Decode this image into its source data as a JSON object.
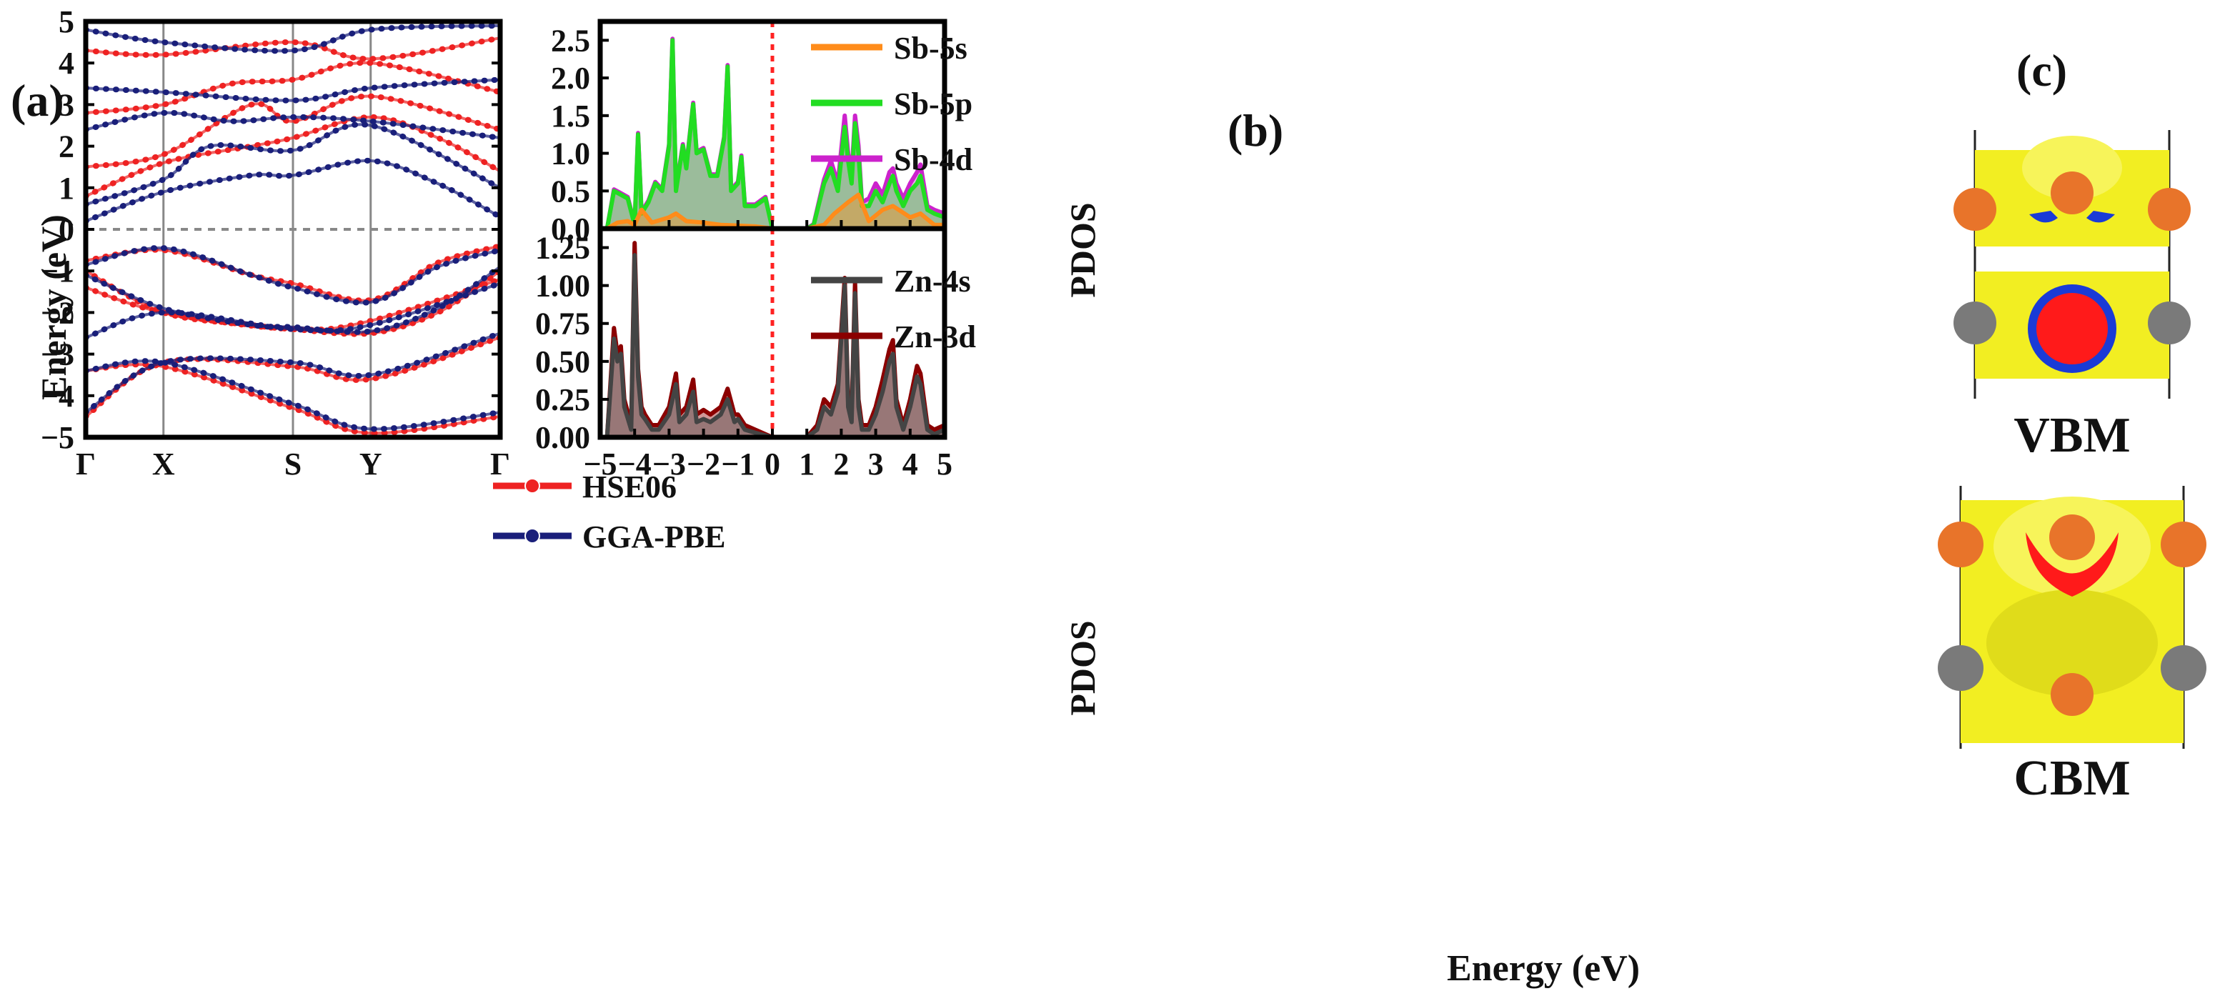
{
  "chart_data": [
    {
      "panel_label": "(a)",
      "type": "line",
      "ylabel": "Energy (eV)",
      "ylim": [
        -5,
        5
      ],
      "yticks": [
        "5",
        "4",
        "3",
        "2",
        "1",
        "0",
        "−1",
        "−2",
        "−3",
        "−4",
        "−5"
      ],
      "kpath": [
        "Γ",
        "X",
        "S",
        "Y",
        "Γ"
      ],
      "kpath_pos": [
        0,
        0.1875,
        0.5,
        0.6875,
        1
      ],
      "fermi_level": 0,
      "legend": [
        {
          "name": "HSE06",
          "color": "#ee2222"
        },
        {
          "name": "GGA-PBE",
          "color": "#1a1f7a"
        }
      ],
      "series": [
        {
          "name": "HSE06",
          "color": "#ee2222",
          "bands": [
            [
              [
                0,
                -0.75
              ],
              [
                0.1875,
                -0.5
              ],
              [
                0.4,
                -1.1
              ],
              [
                0.5,
                -1.3
              ],
              [
                0.6875,
                -1.7
              ],
              [
                0.85,
                -0.8
              ],
              [
                1,
                -0.4
              ]
            ],
            [
              [
                0,
                -1.0
              ],
              [
                0.1875,
                -2.0
              ],
              [
                0.4,
                -2.3
              ],
              [
                0.5,
                -2.4
              ],
              [
                0.6875,
                -2.5
              ],
              [
                0.85,
                -2.0
              ],
              [
                1,
                -1.0
              ]
            ],
            [
              [
                0,
                -1.4
              ],
              [
                0.1875,
                -2.0
              ],
              [
                0.5,
                -2.4
              ],
              [
                0.6875,
                -2.2
              ],
              [
                1,
                -1.2
              ]
            ],
            [
              [
                0,
                -3.4
              ],
              [
                0.1875,
                -3.3
              ],
              [
                0.5,
                -4.3
              ],
              [
                0.6875,
                -4.9
              ],
              [
                1,
                -4.5
              ]
            ],
            [
              [
                0,
                -4.5
              ],
              [
                0.1875,
                -3.2
              ],
              [
                0.5,
                -3.3
              ],
              [
                0.6875,
                -3.6
              ],
              [
                1,
                -2.6
              ]
            ],
            [
              [
                0,
                0.8
              ],
              [
                0.1875,
                1.6
              ],
              [
                0.4,
                2.0
              ],
              [
                0.5,
                2.2
              ],
              [
                0.6875,
                2.7
              ],
              [
                0.85,
                2.2
              ],
              [
                1,
                1.4
              ]
            ],
            [
              [
                0,
                1.5
              ],
              [
                0.1875,
                1.8
              ],
              [
                0.4,
                3.0
              ],
              [
                0.5,
                2.6
              ],
              [
                0.6875,
                3.2
              ],
              [
                1,
                2.4
              ]
            ],
            [
              [
                0,
                2.8
              ],
              [
                0.1875,
                3.0
              ],
              [
                0.35,
                3.5
              ],
              [
                0.5,
                3.6
              ],
              [
                0.6875,
                4.0
              ],
              [
                1,
                3.3
              ]
            ],
            [
              [
                0,
                4.3
              ],
              [
                0.1875,
                4.2
              ],
              [
                0.5,
                4.5
              ],
              [
                0.6875,
                4.1
              ],
              [
                1,
                4.6
              ]
            ]
          ]
        },
        {
          "name": "GGA-PBE",
          "color": "#1a1f7a",
          "bands": [
            [
              [
                0,
                -0.85
              ],
              [
                0.1875,
                -0.45
              ],
              [
                0.4,
                -1.1
              ],
              [
                0.5,
                -1.4
              ],
              [
                0.6875,
                -1.75
              ],
              [
                0.85,
                -0.9
              ],
              [
                1,
                -0.5
              ]
            ],
            [
              [
                0,
                -1.1
              ],
              [
                0.1875,
                -1.9
              ],
              [
                0.4,
                -2.3
              ],
              [
                0.5,
                -2.35
              ],
              [
                0.6875,
                -2.45
              ],
              [
                0.85,
                -1.9
              ],
              [
                1,
                -0.9
              ]
            ],
            [
              [
                0,
                -2.6
              ],
              [
                0.1875,
                -2.0
              ],
              [
                0.5,
                -2.4
              ],
              [
                0.6875,
                -2.3
              ],
              [
                1,
                -1.3
              ]
            ],
            [
              [
                0,
                -3.4
              ],
              [
                0.1875,
                -3.2
              ],
              [
                0.5,
                -4.2
              ],
              [
                0.6875,
                -4.8
              ],
              [
                1,
                -4.4
              ]
            ],
            [
              [
                0,
                -4.4
              ],
              [
                0.1875,
                -3.2
              ],
              [
                0.5,
                -3.2
              ],
              [
                0.6875,
                -3.5
              ],
              [
                1,
                -2.5
              ]
            ],
            [
              [
                0,
                0.2
              ],
              [
                0.1875,
                0.9
              ],
              [
                0.4,
                1.3
              ],
              [
                0.5,
                1.3
              ],
              [
                0.6875,
                1.65
              ],
              [
                0.85,
                1.1
              ],
              [
                1,
                0.3
              ]
            ],
            [
              [
                0,
                0.6
              ],
              [
                0.1875,
                1.2
              ],
              [
                0.3,
                2.0
              ],
              [
                0.5,
                1.9
              ],
              [
                0.6875,
                2.5
              ],
              [
                1,
                1.0
              ]
            ],
            [
              [
                0,
                2.4
              ],
              [
                0.1875,
                2.8
              ],
              [
                0.35,
                2.6
              ],
              [
                0.5,
                2.7
              ],
              [
                0.6875,
                2.6
              ],
              [
                1,
                2.2
              ]
            ],
            [
              [
                0,
                3.4
              ],
              [
                0.1875,
                3.3
              ],
              [
                0.5,
                3.1
              ],
              [
                0.6875,
                3.4
              ],
              [
                1,
                3.6
              ]
            ],
            [
              [
                0,
                4.8
              ],
              [
                0.1875,
                4.5
              ],
              [
                0.5,
                4.3
              ],
              [
                0.6875,
                4.8
              ],
              [
                1,
                4.9
              ]
            ]
          ]
        }
      ]
    },
    {
      "panel_label": "(b)",
      "type": "area",
      "ylabel": "PDOS",
      "ylim": [
        0,
        2.75
      ],
      "yticks": [
        "0.0",
        "0.5",
        "1.0",
        "1.5",
        "2.0",
        "2.5"
      ],
      "xlim": [
        -5,
        5
      ],
      "fermi_level": 0,
      "series": [
        {
          "name": "Sb-5s",
          "color": "#ff8c1a",
          "x": [
            -4.8,
            -4.5,
            -4.2,
            -4.0,
            -3.8,
            -3.5,
            -3.0,
            -2.8,
            -2.5,
            -2.0,
            -1.5,
            -1.0,
            -0.5,
            0,
            1.0,
            1.5,
            1.8,
            2.2,
            2.5,
            2.8,
            3.2,
            3.5,
            4.0,
            4.3,
            4.7,
            5.0
          ],
          "values": [
            0,
            0.08,
            0.1,
            0.05,
            0.25,
            0.08,
            0.15,
            0.2,
            0.1,
            0.08,
            0.05,
            0.04,
            0.03,
            0,
            0,
            0.05,
            0.2,
            0.35,
            0.45,
            0.1,
            0.25,
            0.3,
            0.15,
            0.2,
            0.05,
            0.05
          ]
        },
        {
          "name": "Sb-5p",
          "color": "#22dd22",
          "x": [
            -4.8,
            -4.6,
            -4.4,
            -4.2,
            -4.0,
            -3.9,
            -3.8,
            -3.6,
            -3.4,
            -3.2,
            -3.0,
            -2.9,
            -2.8,
            -2.6,
            -2.5,
            -2.3,
            -2.2,
            -2.0,
            -1.8,
            -1.6,
            -1.4,
            -1.3,
            -1.2,
            -1.0,
            -0.9,
            -0.8,
            -0.5,
            -0.2,
            0,
            1.0,
            1.2,
            1.5,
            1.7,
            1.9,
            2.1,
            2.2,
            2.3,
            2.4,
            2.5,
            2.6,
            2.8,
            3.0,
            3.2,
            3.4,
            3.5,
            3.6,
            3.8,
            4.0,
            4.2,
            4.3,
            4.5,
            4.7,
            5.0
          ],
          "values": [
            0,
            0.5,
            0.45,
            0.4,
            0.05,
            1.25,
            0.2,
            0.35,
            0.6,
            0.5,
            1.1,
            2.5,
            0.5,
            1.1,
            0.8,
            1.65,
            1.0,
            1.05,
            0.7,
            0.7,
            1.2,
            2.15,
            0.5,
            0.6,
            0.95,
            0.3,
            0.3,
            0.4,
            0,
            0,
            0.05,
            0.6,
            0.8,
            0.5,
            1.35,
            0.9,
            0.6,
            1.4,
            1.0,
            0.3,
            0.3,
            0.5,
            0.35,
            0.6,
            0.7,
            0.5,
            0.3,
            0.5,
            0.6,
            0.7,
            0.25,
            0.2,
            0.15
          ]
        },
        {
          "name": "Sb-4d",
          "color": "#cc22cc",
          "x": [
            -4.8,
            -4.6,
            -4.4,
            -4.2,
            -4.0,
            -3.9,
            -3.8,
            -3.6,
            -3.4,
            -3.2,
            -3.0,
            -2.9,
            -2.8,
            -2.6,
            -2.5,
            -2.3,
            -2.2,
            -2.0,
            -1.8,
            -1.6,
            -1.4,
            -1.3,
            -1.2,
            -1.0,
            -0.9,
            -0.8,
            -0.5,
            -0.2,
            0,
            1.0,
            1.2,
            1.5,
            1.7,
            1.9,
            2.1,
            2.2,
            2.3,
            2.4,
            2.5,
            2.6,
            2.8,
            3.0,
            3.2,
            3.4,
            3.5,
            3.6,
            3.8,
            4.0,
            4.2,
            4.3,
            4.5,
            4.7,
            5.0
          ],
          "values": [
            0,
            0.52,
            0.47,
            0.42,
            0.06,
            1.27,
            0.22,
            0.37,
            0.62,
            0.52,
            1.12,
            2.52,
            0.52,
            1.12,
            0.82,
            1.67,
            1.02,
            1.07,
            0.72,
            0.72,
            1.22,
            2.17,
            0.52,
            0.62,
            0.97,
            0.32,
            0.32,
            0.42,
            0,
            0,
            0.06,
            0.65,
            0.9,
            0.6,
            1.5,
            1.0,
            0.7,
            1.5,
            1.1,
            0.35,
            0.4,
            0.6,
            0.45,
            0.75,
            0.8,
            0.6,
            0.4,
            0.6,
            0.75,
            0.85,
            0.3,
            0.25,
            0.2
          ]
        }
      ],
      "legend": [
        "Sb-5s",
        "Sb-5p",
        "Sb-4d"
      ]
    },
    {
      "type": "area",
      "ylabel": "PDOS",
      "xlabel": "Energy (eV)",
      "ylim": [
        0,
        1.375
      ],
      "yticks": [
        "0.00",
        "0.25",
        "0.50",
        "0.75",
        "1.00",
        "1.25"
      ],
      "xlim": [
        -5,
        5
      ],
      "xticks": [
        "−5",
        "−4",
        "−3",
        "−2",
        "−1",
        "0",
        "1",
        "2",
        "3",
        "4",
        "5"
      ],
      "fermi_level": 0,
      "series": [
        {
          "name": "Zn-4s",
          "color": "#444444",
          "x": [
            -4.8,
            -4.6,
            -4.5,
            -4.4,
            -4.3,
            -4.1,
            -4.0,
            -3.9,
            -3.8,
            -3.7,
            -3.5,
            -3.3,
            -3.0,
            -2.8,
            -2.7,
            -2.5,
            -2.3,
            -2.2,
            -2.0,
            -1.8,
            -1.5,
            -1.3,
            -1.1,
            -1.0,
            -0.8,
            -0.5,
            0,
            1.0,
            1.3,
            1.5,
            1.7,
            1.9,
            2.1,
            2.2,
            2.3,
            2.4,
            2.5,
            2.6,
            2.8,
            3.0,
            3.2,
            3.4,
            3.5,
            3.6,
            3.8,
            4.0,
            4.2,
            4.3,
            4.5,
            4.7,
            5.0
          ],
          "values": [
            0,
            0.65,
            0.5,
            0.55,
            0.2,
            0.05,
            1.2,
            0.4,
            0.15,
            0.12,
            0.05,
            0.05,
            0.15,
            0.35,
            0.1,
            0.15,
            0.3,
            0.1,
            0.12,
            0.1,
            0.15,
            0.25,
            0.1,
            0.12,
            0.05,
            0.03,
            0,
            0,
            0.05,
            0.2,
            0.15,
            0.3,
            1.0,
            0.2,
            0.1,
            0.95,
            0.2,
            0.05,
            0.05,
            0.15,
            0.3,
            0.5,
            0.55,
            0.2,
            0.05,
            0.2,
            0.4,
            0.35,
            0.05,
            0.02,
            0.05
          ]
        },
        {
          "name": "Zn-3d",
          "color": "#8b0000",
          "x": [
            -4.8,
            -4.6,
            -4.5,
            -4.4,
            -4.3,
            -4.1,
            -4.0,
            -3.9,
            -3.8,
            -3.7,
            -3.5,
            -3.3,
            -3.0,
            -2.8,
            -2.7,
            -2.5,
            -2.3,
            -2.2,
            -2.0,
            -1.8,
            -1.5,
            -1.3,
            -1.1,
            -1.0,
            -0.8,
            -0.5,
            0,
            1.0,
            1.3,
            1.5,
            1.7,
            1.9,
            2.1,
            2.2,
            2.3,
            2.4,
            2.5,
            2.6,
            2.8,
            3.0,
            3.2,
            3.4,
            3.5,
            3.6,
            3.8,
            4.0,
            4.2,
            4.3,
            4.5,
            4.7,
            5.0
          ],
          "values": [
            0,
            0.72,
            0.55,
            0.6,
            0.25,
            0.08,
            1.28,
            0.45,
            0.2,
            0.15,
            0.08,
            0.08,
            0.2,
            0.42,
            0.15,
            0.2,
            0.38,
            0.15,
            0.18,
            0.15,
            0.2,
            0.32,
            0.15,
            0.15,
            0.08,
            0.05,
            0,
            0,
            0.08,
            0.25,
            0.2,
            0.35,
            1.05,
            0.25,
            0.15,
            1.02,
            0.25,
            0.08,
            0.08,
            0.2,
            0.38,
            0.58,
            0.64,
            0.25,
            0.08,
            0.25,
            0.47,
            0.42,
            0.08,
            0.05,
            0.08
          ]
        }
      ],
      "legend": [
        "Zn-4s",
        "Zn-3d"
      ]
    }
  ],
  "panel_c": {
    "panel_label": "(c)",
    "vbm_label": "VBM",
    "cbm_label": "CBM",
    "colors": {
      "isosurface": "#f2ee22",
      "sb_atom": "#e8742a",
      "zn_atom": "#7a7a7a",
      "red_region": "#ff1a1a",
      "blue_region": "#1a3bd6"
    }
  }
}
